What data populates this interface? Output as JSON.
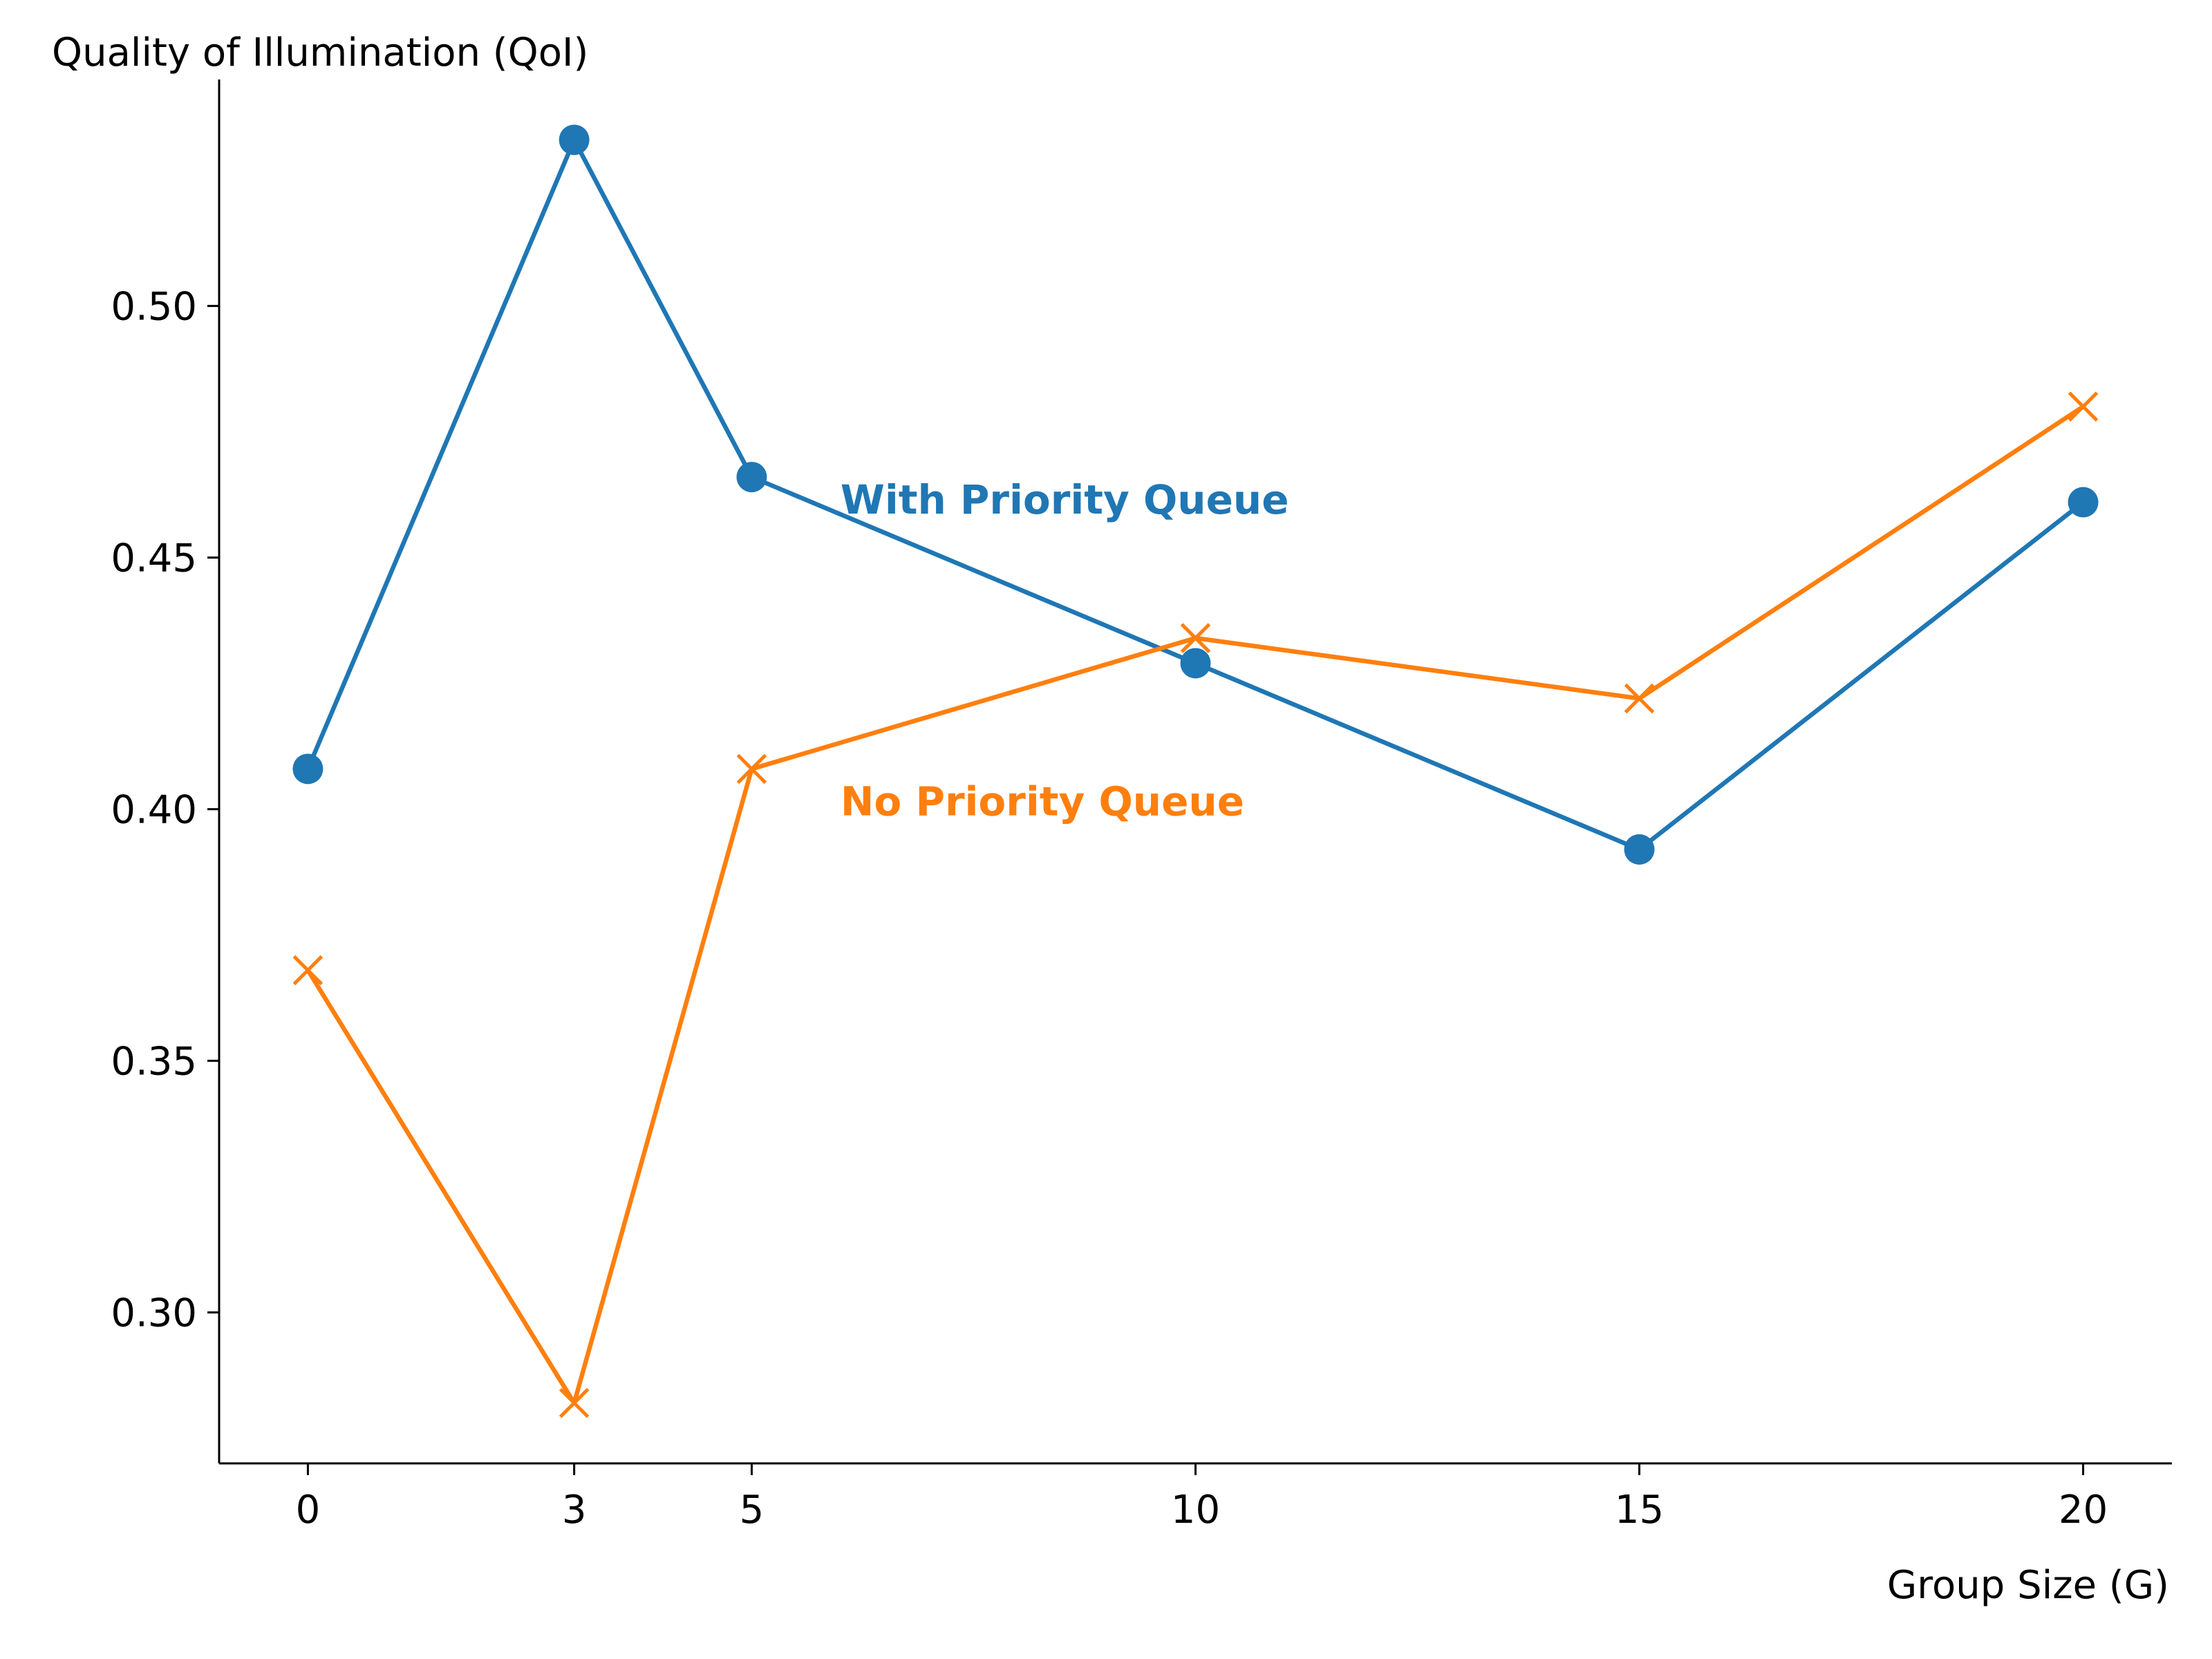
{
  "chart_data": {
    "type": "line",
    "title": "",
    "xlabel": "Group Size (G)",
    "ylabel": "Quality of Illumination (QoI)",
    "x": [
      0,
      3,
      5,
      10,
      15,
      20
    ],
    "xticks": [
      "0",
      "3",
      "5",
      "10",
      "15",
      "20"
    ],
    "yticks": [
      "0.30",
      "0.35",
      "0.40",
      "0.45",
      "0.50"
    ],
    "xlim": [
      -1,
      21
    ],
    "ylim": [
      0.27,
      0.545
    ],
    "grid": false,
    "legend": "none",
    "series": [
      {
        "name": "With Priority Queue",
        "values": [
          0.408,
          0.533,
          0.466,
          0.429,
          0.392,
          0.461
        ],
        "color": "#1f77b4",
        "marker": "circle"
      },
      {
        "name": "No Priority Queue",
        "values": [
          0.368,
          0.282,
          0.408,
          0.434,
          0.422,
          0.48
        ],
        "color": "#ff7f0e",
        "marker": "x"
      }
    ],
    "annotations": [
      {
        "text": "With Priority Queue",
        "x": 6,
        "y": 0.4615,
        "color": "#1f77b4"
      },
      {
        "text": "No Priority Queue",
        "x": 6,
        "y": 0.4015,
        "color": "#ff7f0e"
      }
    ]
  }
}
